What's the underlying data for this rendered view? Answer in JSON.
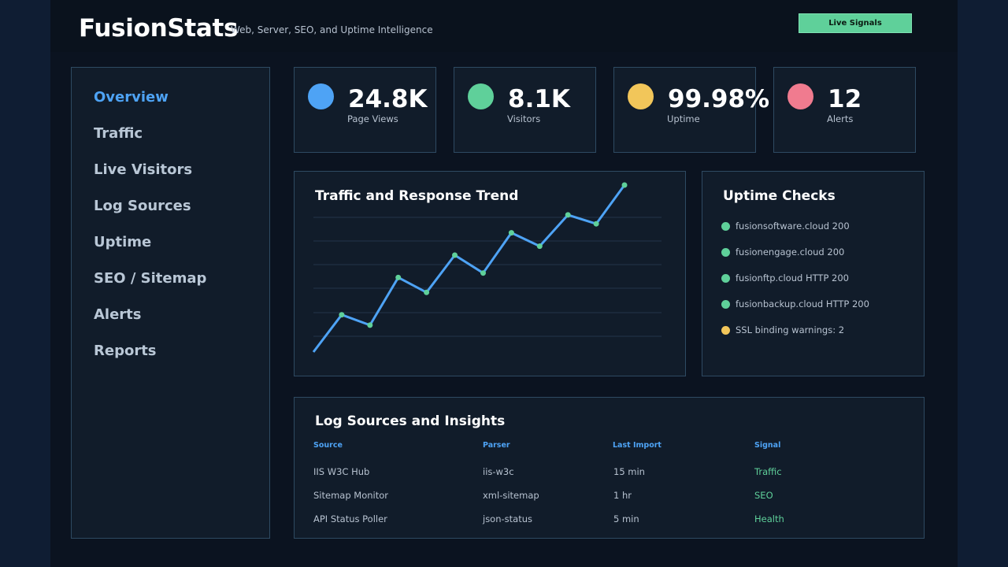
{
  "header": {
    "brand": "FusionStats",
    "tagline": "Web, Server, SEO, and Uptime Intelligence",
    "live_button": "Live Signals"
  },
  "sidebar": {
    "items": [
      {
        "label": "Overview",
        "active": true
      },
      {
        "label": "Traffic"
      },
      {
        "label": "Live Visitors"
      },
      {
        "label": "Log Sources"
      },
      {
        "label": "Uptime"
      },
      {
        "label": "SEO / Sitemap"
      },
      {
        "label": "Alerts"
      },
      {
        "label": "Reports"
      }
    ]
  },
  "stats": [
    {
      "value": "24.8K",
      "label": "Page Views",
      "color": "#4ea3f5"
    },
    {
      "value": "8.1K",
      "label": "Visitors",
      "color": "#5fd09a"
    },
    {
      "value": "99.98%",
      "label": "Uptime",
      "color": "#f2c65a"
    },
    {
      "value": "12",
      "label": "Alerts",
      "color": "#f07b8f"
    }
  ],
  "trend": {
    "title": "Traffic and Response Trend"
  },
  "chart_data": {
    "type": "line",
    "title": "Traffic and Response Trend",
    "values": [
      0,
      2.5,
      1.8,
      5.0,
      4.0,
      6.5,
      5.3,
      8.0,
      7.1,
      9.2,
      8.6,
      11.2
    ],
    "ylim": [
      0,
      11.2
    ],
    "grid": true,
    "line_color": "#4ea3f5",
    "point_color": "#5fd09a"
  },
  "uptime": {
    "title": "Uptime Checks",
    "items": [
      {
        "text": "fusionsoftware.cloud 200",
        "status": "ok"
      },
      {
        "text": "fusionengage.cloud 200",
        "status": "ok"
      },
      {
        "text": "fusionftp.cloud HTTP 200",
        "status": "ok"
      },
      {
        "text": "fusionbackup.cloud HTTP 200",
        "status": "ok"
      },
      {
        "text": "SSL binding warnings: 2",
        "status": "warn"
      }
    ],
    "ok_color": "#5fd09a",
    "warn_color": "#f2c65a"
  },
  "logs": {
    "title": "Log Sources and Insights",
    "columns": [
      "Source",
      "Parser",
      "Last Import",
      "Signal"
    ],
    "rows": [
      [
        "IIS W3C Hub",
        "iis-w3c",
        "15 min",
        "Traffic"
      ],
      [
        "Sitemap Monitor",
        "xml-sitemap",
        "1 hr",
        "SEO"
      ],
      [
        "API Status Poller",
        "json-status",
        "5 min",
        "Health"
      ]
    ]
  }
}
